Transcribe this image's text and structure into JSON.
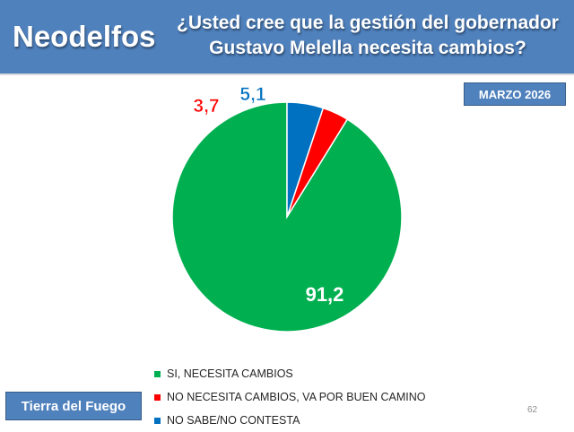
{
  "header": {
    "brand": "Neodelfos",
    "question_line1": "¿Usted cree que la gestión del gobernador",
    "question_line2": "Gustavo Melella necesita cambios?"
  },
  "date_badge": "MARZO 2026",
  "region_badge": "Tierra del Fuego",
  "page_number": "62",
  "chart_data": {
    "type": "pie",
    "title": "¿Usted cree que la gestión del gobernador Gustavo Melella necesita cambios?",
    "start_angle_deg": 0,
    "direction": "counterclockwise",
    "legend_position": "bottom",
    "slices": [
      {
        "label": "SI, NECESITA CAMBIOS",
        "value": 91.2,
        "display": "91,2",
        "color": "#00b050",
        "label_color": "#ffffff"
      },
      {
        "label": "NO NECESITA CAMBIOS, VA POR BUEN CAMINO",
        "value": 3.7,
        "display": "3,7",
        "color": "#ff0000",
        "label_color": "#ff0000"
      },
      {
        "label": "NO SABE/NO CONTESTA",
        "value": 5.1,
        "display": "5,1",
        "color": "#0070c0",
        "label_color": "#0070c0"
      }
    ]
  }
}
